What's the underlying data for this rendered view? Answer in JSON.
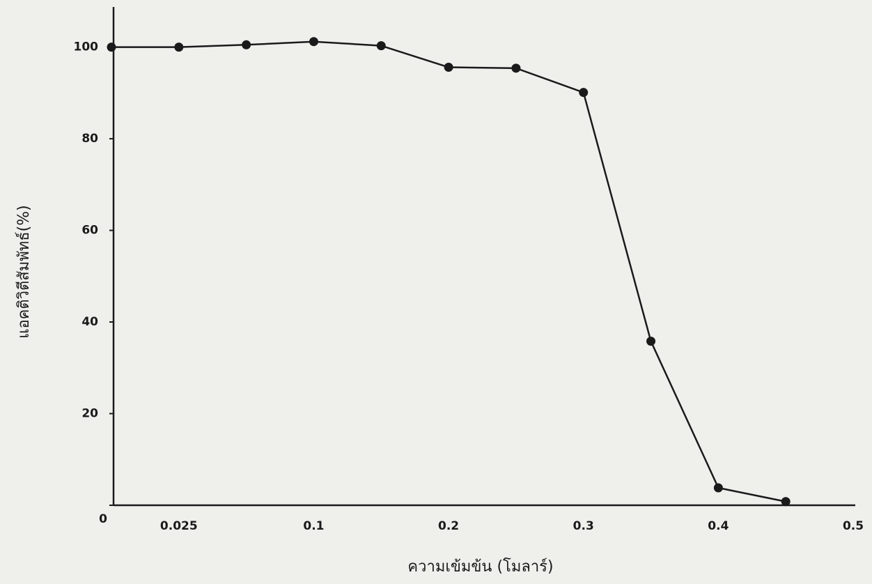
{
  "chart_data": {
    "type": "line",
    "x_label": "ความเข้มข้น (โมลาร์)",
    "y_label": "แอคติวิตีสัมพัทธ์(%)",
    "categories": [
      null,
      "0.025",
      null,
      "0.1",
      null,
      "0.2",
      null,
      "0.3",
      null,
      "0.4",
      null,
      "0.5"
    ],
    "values": [
      100,
      100,
      100.5,
      101.2,
      100.3,
      95.6,
      95.4,
      90.1,
      35.8,
      3.8,
      0.8,
      null
    ],
    "color": "#1a1a1a",
    "ylim": [
      0,
      108
    ],
    "yticks": [
      0,
      20,
      40,
      60,
      80,
      100
    ],
    "grid": false
  }
}
